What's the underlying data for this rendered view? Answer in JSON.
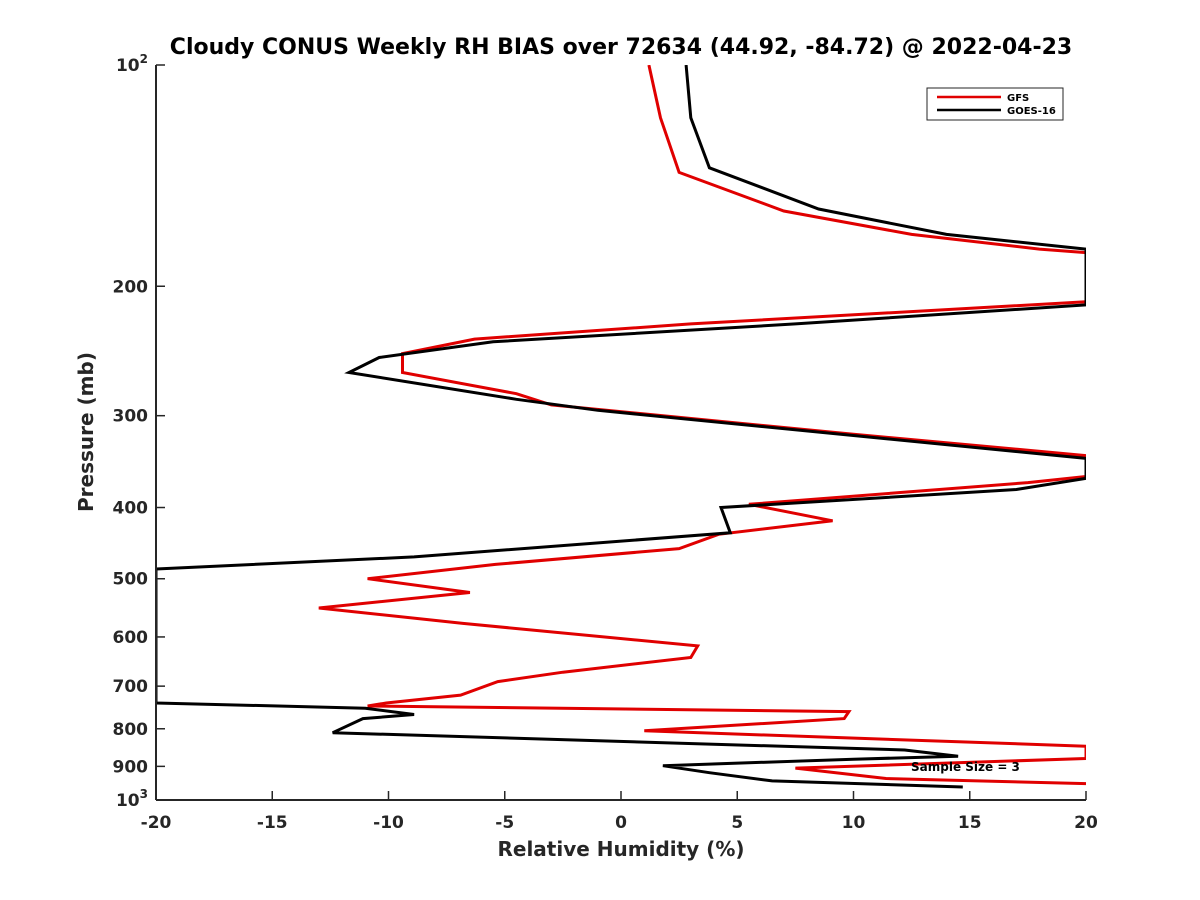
{
  "chart_data": {
    "type": "line",
    "title": "Cloudy CONUS Weekly RH BIAS over 72634 (44.92, -84.72) @ 2022-04-23",
    "xlabel": "Relative Humidity (%)",
    "ylabel": "Pressure (mb)",
    "xlim": [
      -20,
      20
    ],
    "ylim": [
      100,
      1000
    ],
    "y_scale": "log",
    "y_reversed": true,
    "grid": false,
    "legend_position": "top-right",
    "x_ticks": [
      "-20",
      "-15",
      "-10",
      "-5",
      "0",
      "5",
      "10",
      "15",
      "20"
    ],
    "y_ticks": [
      {
        "value": 100,
        "base": "10",
        "exp": "2"
      },
      {
        "value": 200,
        "label": "200"
      },
      {
        "value": 300,
        "label": "300"
      },
      {
        "value": 400,
        "label": "400"
      },
      {
        "value": 500,
        "label": "500"
      },
      {
        "value": 600,
        "label": "600"
      },
      {
        "value": 700,
        "label": "700"
      },
      {
        "value": 800,
        "label": "800"
      },
      {
        "value": 900,
        "label": "900"
      },
      {
        "value": 1000,
        "base": "10",
        "exp": "3"
      }
    ],
    "annotation": "Sample Size = 3",
    "series": [
      {
        "name": "GFS",
        "color": "#e00000",
        "points": [
          [
            1.2,
            100
          ],
          [
            1.7,
            118
          ],
          [
            2.5,
            140
          ],
          [
            7.0,
            158
          ],
          [
            12.5,
            170
          ],
          [
            18.0,
            178
          ],
          [
            20,
            180
          ],
          [
            20,
            210
          ],
          [
            3.0,
            225
          ],
          [
            -6.3,
            236
          ],
          [
            -9.4,
            247
          ],
          [
            -9.4,
            262
          ],
          [
            -4.5,
            280
          ],
          [
            -3.0,
            290
          ],
          [
            10.0,
            318
          ],
          [
            20,
            340
          ],
          [
            20,
            363
          ],
          [
            17.5,
            370
          ],
          [
            5.5,
            396
          ],
          [
            9.1,
            417
          ],
          [
            4.2,
            435
          ],
          [
            2.5,
            455
          ],
          [
            -5.4,
            478
          ],
          [
            -10.9,
            500
          ],
          [
            -6.5,
            522
          ],
          [
            -13.0,
            548
          ],
          [
            -6.8,
            575
          ],
          [
            3.3,
            617
          ],
          [
            3.0,
            640
          ],
          [
            -2.5,
            670
          ],
          [
            -5.3,
            690
          ],
          [
            -6.9,
            720
          ],
          [
            -10.1,
            738
          ],
          [
            -10.9,
            745
          ],
          [
            9.8,
            758
          ],
          [
            9.6,
            775
          ],
          [
            1.0,
            805
          ],
          [
            20,
            845
          ],
          [
            20,
            878
          ],
          [
            7.5,
            905
          ],
          [
            11.4,
            935
          ],
          [
            20,
            950
          ]
        ]
      },
      {
        "name": "GOES-16",
        "color": "#000000",
        "points": [
          [
            2.8,
            100
          ],
          [
            3.0,
            118
          ],
          [
            3.8,
            138
          ],
          [
            8.5,
            157
          ],
          [
            14.0,
            170
          ],
          [
            20,
            178
          ],
          [
            20,
            212
          ],
          [
            7.5,
            225
          ],
          [
            -5.5,
            238
          ],
          [
            -10.4,
            250
          ],
          [
            -11.7,
            262
          ],
          [
            -4.5,
            285
          ],
          [
            -1.0,
            295
          ],
          [
            20,
            343
          ],
          [
            20,
            365
          ],
          [
            17.0,
            378
          ],
          [
            4.3,
            400
          ],
          [
            4.7,
            433
          ],
          [
            -8.9,
            467
          ],
          [
            -20,
            485
          ],
          [
            -20,
            738
          ],
          [
            -11.0,
            750
          ],
          [
            -8.9,
            765
          ],
          [
            -11.1,
            775
          ],
          [
            -12.4,
            810
          ],
          [
            12.2,
            855
          ],
          [
            14.5,
            872
          ],
          [
            10.0,
            880
          ],
          [
            1.8,
            898
          ],
          [
            3.8,
            918
          ],
          [
            6.5,
            942
          ],
          [
            14.7,
            960
          ]
        ]
      }
    ]
  }
}
